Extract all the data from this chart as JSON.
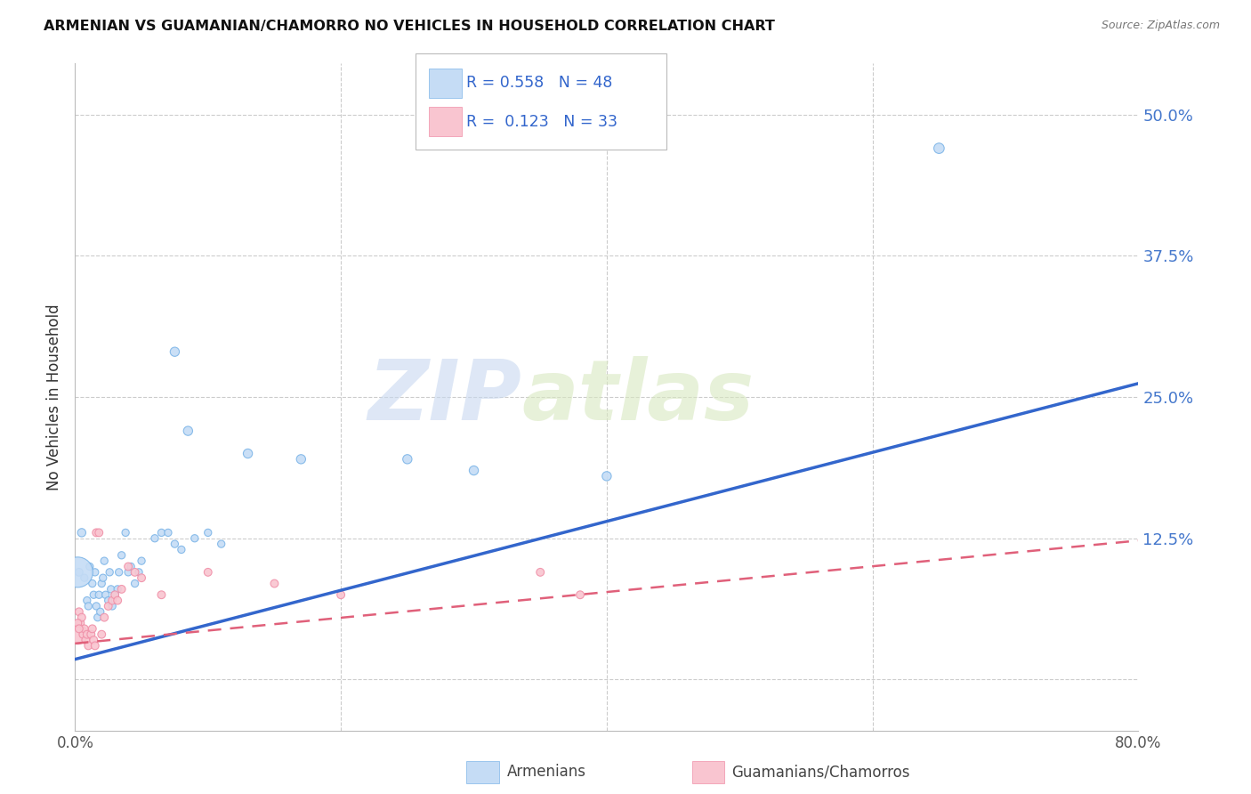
{
  "title": "ARMENIAN VS GUAMANIAN/CHAMORRO NO VEHICLES IN HOUSEHOLD CORRELATION CHART",
  "source": "Source: ZipAtlas.com",
  "ylabel": "No Vehicles in Household",
  "yticks": [
    0.0,
    0.125,
    0.25,
    0.375,
    0.5
  ],
  "ytick_labels": [
    "",
    "12.5%",
    "25.0%",
    "37.5%",
    "50.0%"
  ],
  "xlim": [
    0.0,
    0.8
  ],
  "ylim": [
    -0.045,
    0.545
  ],
  "watermark_zip": "ZIP",
  "watermark_atlas": "atlas",
  "legend_armenian_R": "0.558",
  "legend_armenian_N": "48",
  "legend_guamanian_R": "0.123",
  "legend_guamanian_N": "33",
  "armenian_fill": "#C5DCF5",
  "armenian_edge": "#7EB6E8",
  "guamanian_fill": "#F9C5D0",
  "guamanian_edge": "#F090A8",
  "armenian_line_color": "#3366CC",
  "guamanian_line_color": "#E0607A",
  "arm_line_x0": 0.0,
  "arm_line_y0": 0.018,
  "arm_line_x1": 0.8,
  "arm_line_y1": 0.262,
  "gua_line_x0": 0.0,
  "gua_line_y0": 0.032,
  "gua_line_x1": 0.8,
  "gua_line_y1": 0.123,
  "armenian_points": [
    [
      0.003,
      0.095
    ],
    [
      0.005,
      0.13
    ],
    [
      0.007,
      0.09
    ],
    [
      0.009,
      0.07
    ],
    [
      0.01,
      0.065
    ],
    [
      0.011,
      0.1
    ],
    [
      0.013,
      0.085
    ],
    [
      0.014,
      0.075
    ],
    [
      0.015,
      0.095
    ],
    [
      0.016,
      0.065
    ],
    [
      0.017,
      0.055
    ],
    [
      0.018,
      0.075
    ],
    [
      0.019,
      0.06
    ],
    [
      0.02,
      0.085
    ],
    [
      0.021,
      0.09
    ],
    [
      0.022,
      0.105
    ],
    [
      0.023,
      0.075
    ],
    [
      0.025,
      0.07
    ],
    [
      0.026,
      0.095
    ],
    [
      0.027,
      0.08
    ],
    [
      0.028,
      0.065
    ],
    [
      0.03,
      0.075
    ],
    [
      0.032,
      0.08
    ],
    [
      0.033,
      0.095
    ],
    [
      0.035,
      0.11
    ],
    [
      0.038,
      0.13
    ],
    [
      0.04,
      0.095
    ],
    [
      0.042,
      0.1
    ],
    [
      0.045,
      0.085
    ],
    [
      0.048,
      0.095
    ],
    [
      0.05,
      0.105
    ],
    [
      0.06,
      0.125
    ],
    [
      0.065,
      0.13
    ],
    [
      0.07,
      0.13
    ],
    [
      0.075,
      0.12
    ],
    [
      0.08,
      0.115
    ],
    [
      0.09,
      0.125
    ],
    [
      0.1,
      0.13
    ],
    [
      0.11,
      0.12
    ],
    [
      0.075,
      0.29
    ],
    [
      0.085,
      0.22
    ],
    [
      0.13,
      0.2
    ],
    [
      0.17,
      0.195
    ],
    [
      0.25,
      0.195
    ],
    [
      0.3,
      0.185
    ],
    [
      0.4,
      0.18
    ],
    [
      0.65,
      0.47
    ],
    [
      0.002,
      0.095
    ]
  ],
  "armenian_sizes": [
    40,
    45,
    35,
    35,
    35,
    35,
    35,
    35,
    35,
    35,
    35,
    35,
    35,
    35,
    35,
    35,
    35,
    35,
    35,
    35,
    35,
    35,
    35,
    35,
    35,
    35,
    35,
    35,
    35,
    35,
    35,
    35,
    35,
    35,
    35,
    35,
    35,
    35,
    35,
    55,
    55,
    55,
    55,
    55,
    55,
    55,
    70,
    600
  ],
  "guamanian_points": [
    [
      0.002,
      0.04
    ],
    [
      0.003,
      0.06
    ],
    [
      0.004,
      0.05
    ],
    [
      0.005,
      0.055
    ],
    [
      0.006,
      0.04
    ],
    [
      0.007,
      0.045
    ],
    [
      0.008,
      0.035
    ],
    [
      0.009,
      0.04
    ],
    [
      0.01,
      0.03
    ],
    [
      0.012,
      0.04
    ],
    [
      0.013,
      0.045
    ],
    [
      0.014,
      0.035
    ],
    [
      0.015,
      0.03
    ],
    [
      0.016,
      0.13
    ],
    [
      0.018,
      0.13
    ],
    [
      0.02,
      0.04
    ],
    [
      0.022,
      0.055
    ],
    [
      0.025,
      0.065
    ],
    [
      0.028,
      0.07
    ],
    [
      0.03,
      0.075
    ],
    [
      0.032,
      0.07
    ],
    [
      0.035,
      0.08
    ],
    [
      0.04,
      0.1
    ],
    [
      0.045,
      0.095
    ],
    [
      0.05,
      0.09
    ],
    [
      0.065,
      0.075
    ],
    [
      0.1,
      0.095
    ],
    [
      0.15,
      0.085
    ],
    [
      0.2,
      0.075
    ],
    [
      0.35,
      0.095
    ],
    [
      0.38,
      0.075
    ],
    [
      0.002,
      0.05
    ],
    [
      0.003,
      0.045
    ]
  ],
  "guamanian_sizes": [
    250,
    40,
    40,
    40,
    40,
    40,
    40,
    40,
    40,
    40,
    40,
    40,
    40,
    40,
    40,
    40,
    40,
    40,
    40,
    40,
    40,
    40,
    40,
    40,
    40,
    40,
    40,
    40,
    40,
    40,
    40,
    40,
    40
  ],
  "background_color": "#FFFFFF",
  "grid_color": "#CCCCCC"
}
